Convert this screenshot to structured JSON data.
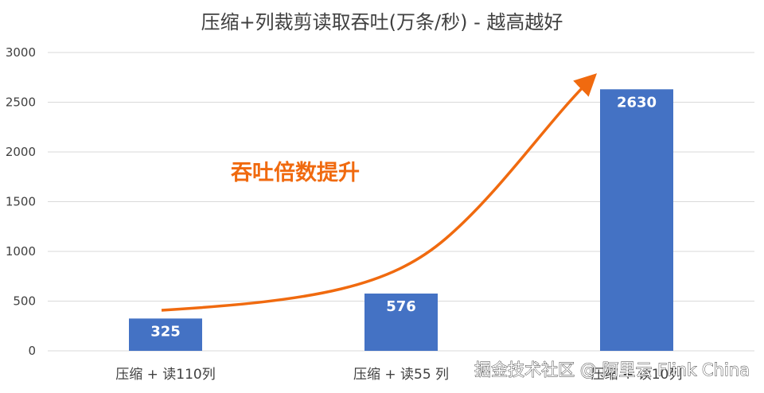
{
  "chart_data": {
    "type": "bar",
    "title": "压缩+列裁剪读取吞吐(万条/秒) - 越高越好",
    "categories": [
      "压缩 + 读110列",
      "压缩 + 读55 列",
      "压缩 + 读10列"
    ],
    "values": [
      325,
      576,
      2630
    ],
    "data_labels": [
      "325",
      "576",
      "2630"
    ],
    "y_ticks": [
      "0",
      "500",
      "1000",
      "1500",
      "2000",
      "2500",
      "3000"
    ],
    "ylim": [
      0,
      3000
    ],
    "grid": true,
    "bar_color": "#4472c4",
    "annotation": {
      "text": "吞吐倍数提升",
      "color": "#f06a0f",
      "arrow_color": "#f06a0f"
    }
  },
  "watermark": "掘金技术社区 @ 阿里云 Flink China"
}
